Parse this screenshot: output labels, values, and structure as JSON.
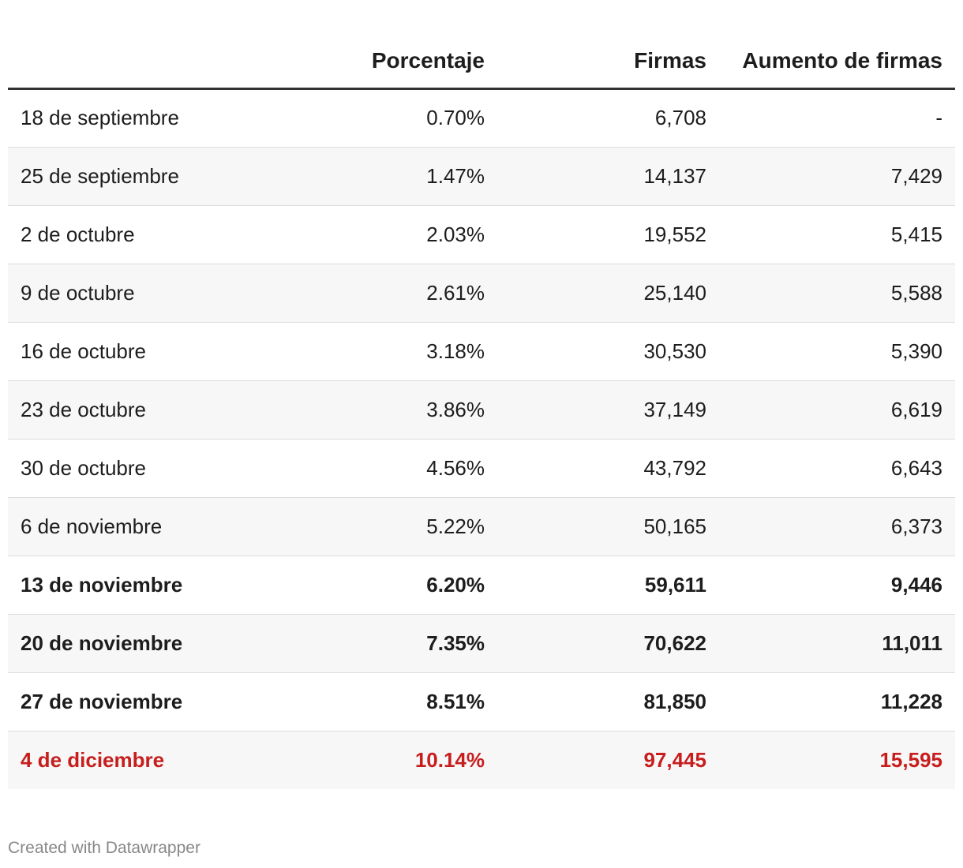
{
  "chart_data": {
    "type": "table",
    "columns": [
      "",
      "Porcentaje",
      "Firmas",
      "Aumento de firmas"
    ],
    "rows": [
      {
        "fecha": "18 de septiembre",
        "porcentaje": "0.70%",
        "firmas": "6,708",
        "aumento": "-",
        "style": "normal"
      },
      {
        "fecha": "25 de septiembre",
        "porcentaje": "1.47%",
        "firmas": "14,137",
        "aumento": "7,429",
        "style": "normal"
      },
      {
        "fecha": "2 de octubre",
        "porcentaje": "2.03%",
        "firmas": "19,552",
        "aumento": "5,415",
        "style": "normal"
      },
      {
        "fecha": "9 de octubre",
        "porcentaje": "2.61%",
        "firmas": "25,140",
        "aumento": "5,588",
        "style": "normal"
      },
      {
        "fecha": "16 de octubre",
        "porcentaje": "3.18%",
        "firmas": "30,530",
        "aumento": "5,390",
        "style": "normal"
      },
      {
        "fecha": "23 de octubre",
        "porcentaje": "3.86%",
        "firmas": "37,149",
        "aumento": "6,619",
        "style": "normal"
      },
      {
        "fecha": "30 de octubre",
        "porcentaje": "4.56%",
        "firmas": "43,792",
        "aumento": "6,643",
        "style": "normal"
      },
      {
        "fecha": "6 de noviembre",
        "porcentaje": "5.22%",
        "firmas": "50,165",
        "aumento": "6,373",
        "style": "normal"
      },
      {
        "fecha": "13 de noviembre",
        "porcentaje": "6.20%",
        "firmas": "59,611",
        "aumento": "9,446",
        "style": "bold"
      },
      {
        "fecha": "20 de noviembre",
        "porcentaje": "7.35%",
        "firmas": "70,622",
        "aumento": "11,011",
        "style": "bold"
      },
      {
        "fecha": "27 de noviembre",
        "porcentaje": "8.51%",
        "firmas": "81,850",
        "aumento": "11,228",
        "style": "bold"
      },
      {
        "fecha": "4 de diciembre",
        "porcentaje": "10.14%",
        "firmas": "97,445",
        "aumento": "15,595",
        "style": "highlight"
      }
    ],
    "highlight_color": "#c71e1d",
    "header_rule_color": "#333333",
    "stripe_color": "#f7f7f7"
  },
  "footer": {
    "credit": "Created with Datawrapper"
  }
}
